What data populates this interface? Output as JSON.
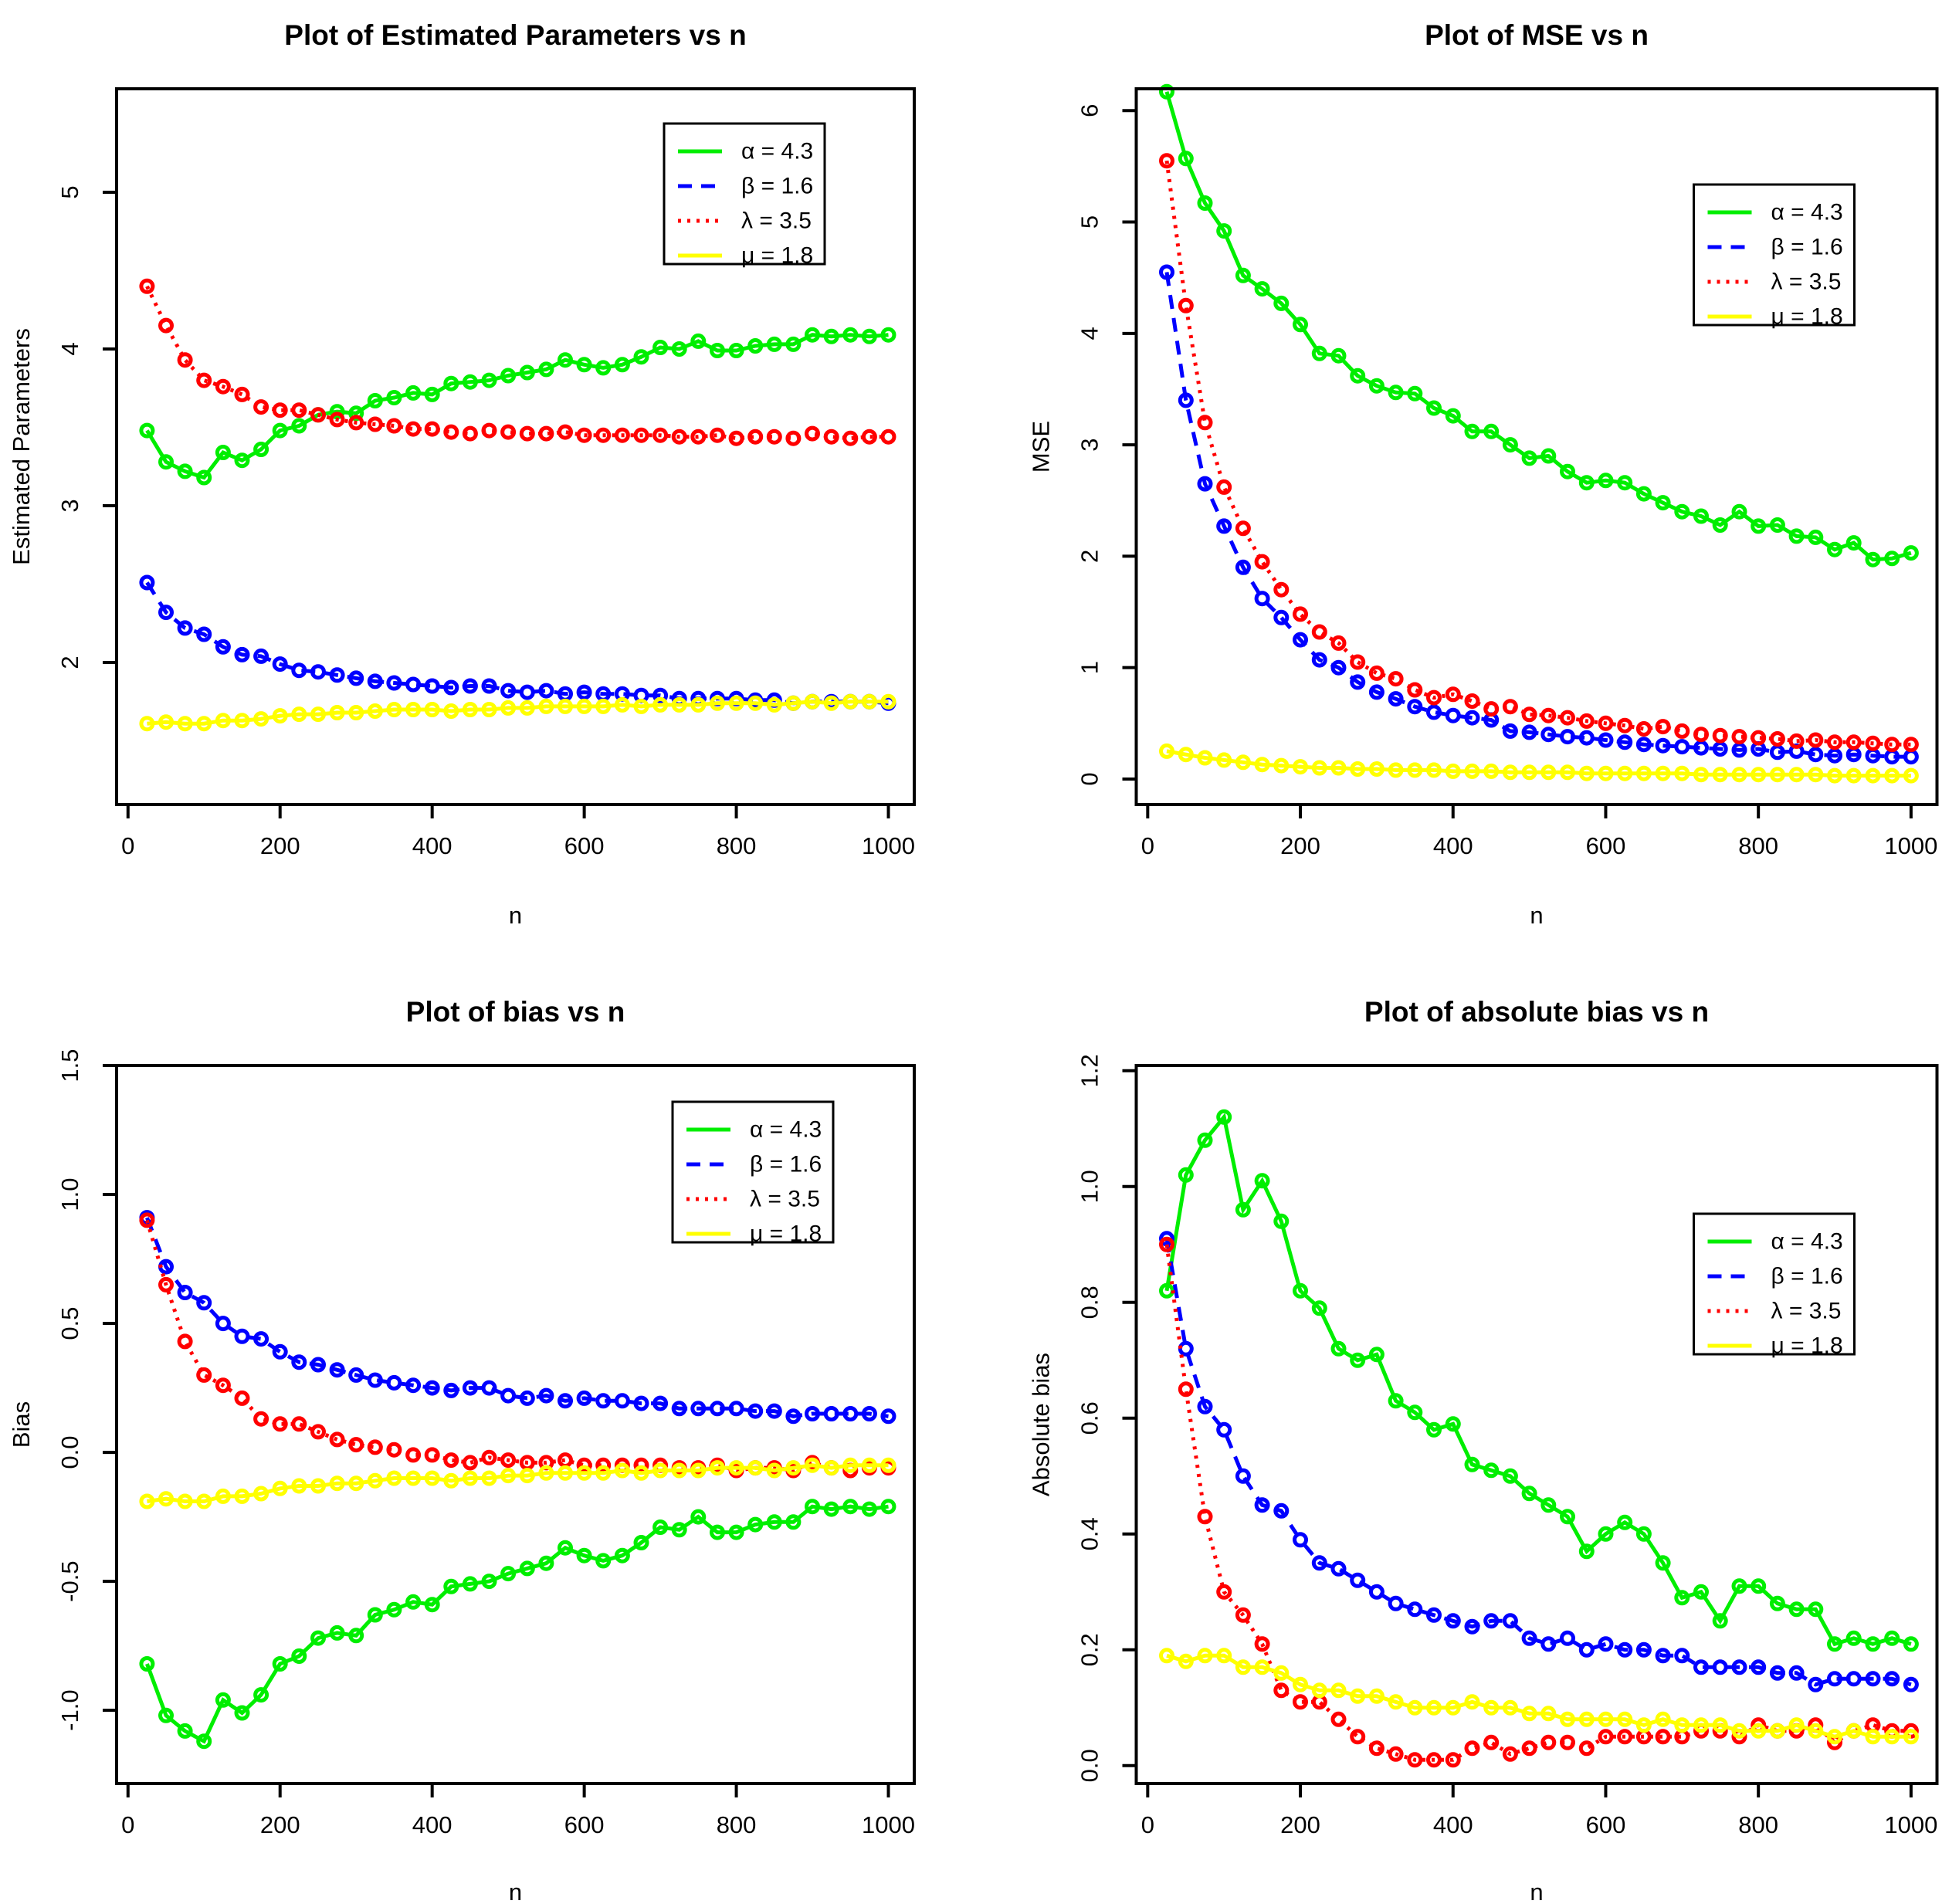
{
  "figure": {
    "background": "#ffffff",
    "axis_color": "#000000"
  },
  "n": [
    25,
    50,
    75,
    100,
    125,
    150,
    175,
    200,
    225,
    250,
    275,
    300,
    325,
    350,
    375,
    400,
    425,
    450,
    475,
    500,
    525,
    550,
    575,
    600,
    625,
    650,
    675,
    700,
    725,
    750,
    775,
    800,
    825,
    850,
    875,
    900,
    925,
    950,
    975,
    1000
  ],
  "legend_labels": [
    "α = 4.3",
    "β = 1.6",
    "λ = 3.5",
    "μ = 1.8"
  ],
  "chart_data": [
    {
      "type": "line",
      "title": "Plot of Estimated Parameters vs n",
      "xlabel": "n",
      "ylabel": "Estimated Parameters",
      "xlim": [
        -15,
        1034
      ],
      "ylim": [
        1.094,
        5.66
      ],
      "xticks": [
        0,
        200,
        400,
        600,
        800,
        1000
      ],
      "xtick_labels": [
        "0",
        "200",
        "400",
        "600",
        "800",
        "1000"
      ],
      "yticks": [
        2,
        3,
        4,
        5
      ],
      "ytick_labels": [
        "2",
        "3",
        "4",
        "5"
      ],
      "grid": false,
      "legend_position": "top-right",
      "series": [
        {
          "name": "alpha",
          "label": "α = 4.3",
          "color": "#00ee00",
          "dash": "solid",
          "marker": "open-circle",
          "values": [
            3.48,
            3.28,
            3.22,
            3.18,
            3.34,
            3.29,
            3.36,
            3.48,
            3.51,
            3.58,
            3.6,
            3.59,
            3.67,
            3.69,
            3.72,
            3.71,
            3.78,
            3.79,
            3.8,
            3.83,
            3.85,
            3.87,
            3.93,
            3.9,
            3.88,
            3.9,
            3.95,
            4.01,
            4.0,
            4.05,
            3.99,
            3.99,
            4.02,
            4.03,
            4.03,
            4.09,
            4.08,
            4.09,
            4.08,
            4.09
          ]
        },
        {
          "name": "beta",
          "label": "β = 1.6",
          "color": "#0000ff",
          "dash": "dashed",
          "marker": "open-circle",
          "values": [
            2.51,
            2.32,
            2.22,
            2.18,
            2.1,
            2.05,
            2.04,
            1.99,
            1.95,
            1.94,
            1.92,
            1.9,
            1.88,
            1.87,
            1.86,
            1.85,
            1.84,
            1.85,
            1.85,
            1.82,
            1.81,
            1.82,
            1.8,
            1.81,
            1.8,
            1.8,
            1.79,
            1.79,
            1.77,
            1.77,
            1.77,
            1.77,
            1.76,
            1.76,
            1.74,
            1.75,
            1.75,
            1.75,
            1.75,
            1.74
          ]
        },
        {
          "name": "lambda",
          "label": "λ = 3.5",
          "color": "#ff0000",
          "dash": "dotted",
          "marker": "open-circle",
          "values": [
            4.4,
            4.15,
            3.93,
            3.8,
            3.76,
            3.71,
            3.63,
            3.61,
            3.61,
            3.58,
            3.55,
            3.53,
            3.52,
            3.51,
            3.49,
            3.49,
            3.47,
            3.46,
            3.48,
            3.47,
            3.46,
            3.46,
            3.47,
            3.45,
            3.45,
            3.45,
            3.45,
            3.45,
            3.44,
            3.44,
            3.45,
            3.43,
            3.44,
            3.44,
            3.43,
            3.46,
            3.44,
            3.43,
            3.44,
            3.44
          ]
        },
        {
          "name": "mu",
          "label": "μ = 1.8",
          "color": "#ffff00",
          "dash": "solid",
          "marker": "open-circle",
          "values": [
            1.61,
            1.62,
            1.61,
            1.61,
            1.63,
            1.63,
            1.64,
            1.66,
            1.67,
            1.67,
            1.68,
            1.68,
            1.69,
            1.7,
            1.7,
            1.7,
            1.69,
            1.7,
            1.7,
            1.71,
            1.71,
            1.72,
            1.72,
            1.72,
            1.72,
            1.73,
            1.72,
            1.73,
            1.73,
            1.73,
            1.74,
            1.74,
            1.74,
            1.73,
            1.74,
            1.75,
            1.74,
            1.75,
            1.75,
            1.75
          ]
        }
      ]
    },
    {
      "type": "line",
      "title": "Plot of MSE vs n",
      "xlabel": "n",
      "ylabel": "MSE",
      "xlim": [
        -15,
        1034
      ],
      "ylim": [
        -0.229,
        6.196
      ],
      "xticks": [
        0,
        200,
        400,
        600,
        800,
        1000
      ],
      "xtick_labels": [
        "0",
        "200",
        "400",
        "600",
        "800",
        "1000"
      ],
      "yticks": [
        0,
        1,
        2,
        3,
        4,
        5,
        6
      ],
      "ytick_labels": [
        "0",
        "1",
        "2",
        "3",
        "4",
        "5",
        "6"
      ],
      "grid": false,
      "legend_position": "top-right",
      "series": [
        {
          "name": "alpha",
          "label": "α = 4.3",
          "color": "#00ee00",
          "dash": "solid",
          "marker": "open-circle",
          "values": [
            6.17,
            5.57,
            5.17,
            4.92,
            4.52,
            4.4,
            4.27,
            4.08,
            3.82,
            3.8,
            3.62,
            3.53,
            3.47,
            3.46,
            3.33,
            3.26,
            3.12,
            3.12,
            3.0,
            2.88,
            2.9,
            2.76,
            2.66,
            2.68,
            2.66,
            2.56,
            2.48,
            2.4,
            2.36,
            2.28,
            2.4,
            2.27,
            2.28,
            2.18,
            2.17,
            2.06,
            2.12,
            1.97,
            1.98,
            2.03
          ]
        },
        {
          "name": "beta",
          "label": "β = 1.6",
          "color": "#0000ff",
          "dash": "dashed",
          "marker": "open-circle",
          "values": [
            4.55,
            3.4,
            2.65,
            2.27,
            1.9,
            1.62,
            1.45,
            1.25,
            1.07,
            1.0,
            0.87,
            0.78,
            0.72,
            0.65,
            0.6,
            0.57,
            0.55,
            0.53,
            0.43,
            0.42,
            0.4,
            0.38,
            0.37,
            0.35,
            0.33,
            0.31,
            0.3,
            0.29,
            0.28,
            0.27,
            0.26,
            0.27,
            0.24,
            0.25,
            0.22,
            0.21,
            0.22,
            0.21,
            0.2,
            0.2
          ]
        },
        {
          "name": "lambda",
          "label": "λ = 3.5",
          "color": "#ff0000",
          "dash": "dotted",
          "marker": "open-circle",
          "values": [
            5.55,
            4.25,
            3.2,
            2.62,
            2.25,
            1.95,
            1.7,
            1.48,
            1.32,
            1.22,
            1.05,
            0.95,
            0.9,
            0.8,
            0.73,
            0.76,
            0.7,
            0.63,
            0.65,
            0.58,
            0.57,
            0.55,
            0.52,
            0.5,
            0.48,
            0.45,
            0.47,
            0.43,
            0.4,
            0.39,
            0.38,
            0.37,
            0.36,
            0.34,
            0.35,
            0.33,
            0.33,
            0.32,
            0.31,
            0.31
          ]
        },
        {
          "name": "mu",
          "label": "μ = 1.8",
          "color": "#ffff00",
          "dash": "solid",
          "marker": "open-circle",
          "values": [
            0.25,
            0.22,
            0.19,
            0.17,
            0.15,
            0.13,
            0.12,
            0.11,
            0.1,
            0.1,
            0.09,
            0.09,
            0.08,
            0.08,
            0.08,
            0.07,
            0.07,
            0.07,
            0.06,
            0.06,
            0.06,
            0.06,
            0.05,
            0.05,
            0.05,
            0.05,
            0.05,
            0.05,
            0.04,
            0.04,
            0.04,
            0.04,
            0.04,
            0.04,
            0.04,
            0.03,
            0.03,
            0.03,
            0.03,
            0.03
          ]
        }
      ]
    },
    {
      "type": "line",
      "title": "Plot of bias vs n",
      "xlabel": "n",
      "ylabel": "Bias",
      "xlim": [
        -15,
        1034
      ],
      "ylim": [
        -1.284,
        1.5
      ],
      "xticks": [
        0,
        200,
        400,
        600,
        800,
        1000
      ],
      "xtick_labels": [
        "0",
        "200",
        "400",
        "600",
        "800",
        "1000"
      ],
      "yticks": [
        -1.0,
        -0.5,
        0.0,
        0.5,
        1.0,
        1.5
      ],
      "ytick_labels": [
        "-1.0",
        "-0.5",
        "0.0",
        "0.5",
        "1.0",
        "1.5"
      ],
      "grid": false,
      "legend_position": "top-right",
      "series": [
        {
          "name": "alpha",
          "label": "α = 4.3",
          "color": "#00ee00",
          "dash": "solid",
          "marker": "open-circle",
          "values": [
            -0.82,
            -1.02,
            -1.08,
            -1.12,
            -0.96,
            -1.01,
            -0.94,
            -0.82,
            -0.79,
            -0.72,
            -0.7,
            -0.71,
            -0.63,
            -0.61,
            -0.58,
            -0.59,
            -0.52,
            -0.51,
            -0.5,
            -0.47,
            -0.45,
            -0.43,
            -0.37,
            -0.4,
            -0.42,
            -0.4,
            -0.35,
            -0.29,
            -0.3,
            -0.25,
            -0.31,
            -0.31,
            -0.28,
            -0.27,
            -0.27,
            -0.21,
            -0.22,
            -0.21,
            -0.22,
            -0.21
          ]
        },
        {
          "name": "beta",
          "label": "β = 1.6",
          "color": "#0000ff",
          "dash": "dashed",
          "marker": "open-circle",
          "values": [
            0.91,
            0.72,
            0.62,
            0.58,
            0.5,
            0.45,
            0.44,
            0.39,
            0.35,
            0.34,
            0.32,
            0.3,
            0.28,
            0.27,
            0.26,
            0.25,
            0.24,
            0.25,
            0.25,
            0.22,
            0.21,
            0.22,
            0.2,
            0.21,
            0.2,
            0.2,
            0.19,
            0.19,
            0.17,
            0.17,
            0.17,
            0.17,
            0.16,
            0.16,
            0.14,
            0.15,
            0.15,
            0.15,
            0.15,
            0.14
          ]
        },
        {
          "name": "lambda",
          "label": "λ = 3.5",
          "color": "#ff0000",
          "dash": "dotted",
          "marker": "open-circle",
          "values": [
            0.9,
            0.65,
            0.43,
            0.3,
            0.26,
            0.21,
            0.13,
            0.11,
            0.11,
            0.08,
            0.05,
            0.03,
            0.02,
            0.01,
            -0.01,
            -0.01,
            -0.03,
            -0.04,
            -0.02,
            -0.03,
            -0.04,
            -0.04,
            -0.03,
            -0.05,
            -0.05,
            -0.05,
            -0.05,
            -0.05,
            -0.06,
            -0.06,
            -0.05,
            -0.07,
            -0.06,
            -0.06,
            -0.07,
            -0.04,
            -0.06,
            -0.07,
            -0.06,
            -0.06
          ]
        },
        {
          "name": "mu",
          "label": "μ = 1.8",
          "color": "#ffff00",
          "dash": "solid",
          "marker": "open-circle",
          "values": [
            -0.19,
            -0.18,
            -0.19,
            -0.19,
            -0.17,
            -0.17,
            -0.16,
            -0.14,
            -0.13,
            -0.13,
            -0.12,
            -0.12,
            -0.11,
            -0.1,
            -0.1,
            -0.1,
            -0.11,
            -0.1,
            -0.1,
            -0.09,
            -0.09,
            -0.08,
            -0.08,
            -0.08,
            -0.08,
            -0.07,
            -0.08,
            -0.07,
            -0.07,
            -0.07,
            -0.06,
            -0.06,
            -0.06,
            -0.07,
            -0.06,
            -0.05,
            -0.06,
            -0.05,
            -0.05,
            -0.05
          ]
        }
      ]
    },
    {
      "type": "line",
      "title": "Plot of absolute bias vs n",
      "xlabel": "n",
      "ylabel": "Absolute bias",
      "xlim": [
        -15,
        1034
      ],
      "ylim": [
        -0.031,
        1.209
      ],
      "xticks": [
        0,
        200,
        400,
        600,
        800,
        1000
      ],
      "xtick_labels": [
        "0",
        "200",
        "400",
        "600",
        "800",
        "1000"
      ],
      "yticks": [
        0.0,
        0.2,
        0.4,
        0.6,
        0.8,
        1.0,
        1.2
      ],
      "ytick_labels": [
        "0.0",
        "0.2",
        "0.4",
        "0.6",
        "0.8",
        "1.0",
        "1.2"
      ],
      "grid": false,
      "legend_position": "top-right",
      "series": [
        {
          "name": "alpha",
          "label": "α = 4.3",
          "color": "#00ee00",
          "dash": "solid",
          "marker": "open-circle",
          "values": [
            0.82,
            1.02,
            1.08,
            1.12,
            0.96,
            1.01,
            0.94,
            0.82,
            0.79,
            0.72,
            0.7,
            0.71,
            0.63,
            0.61,
            0.58,
            0.59,
            0.52,
            0.51,
            0.5,
            0.47,
            0.45,
            0.43,
            0.37,
            0.4,
            0.42,
            0.4,
            0.35,
            0.29,
            0.3,
            0.25,
            0.31,
            0.31,
            0.28,
            0.27,
            0.27,
            0.21,
            0.22,
            0.21,
            0.22,
            0.21
          ]
        },
        {
          "name": "beta",
          "label": "β = 1.6",
          "color": "#0000ff",
          "dash": "dashed",
          "marker": "open-circle",
          "values": [
            0.91,
            0.72,
            0.62,
            0.58,
            0.5,
            0.45,
            0.44,
            0.39,
            0.35,
            0.34,
            0.32,
            0.3,
            0.28,
            0.27,
            0.26,
            0.25,
            0.24,
            0.25,
            0.25,
            0.22,
            0.21,
            0.22,
            0.2,
            0.21,
            0.2,
            0.2,
            0.19,
            0.19,
            0.17,
            0.17,
            0.17,
            0.17,
            0.16,
            0.16,
            0.14,
            0.15,
            0.15,
            0.15,
            0.15,
            0.14
          ]
        },
        {
          "name": "lambda",
          "label": "λ = 3.5",
          "color": "#ff0000",
          "dash": "dotted",
          "marker": "open-circle",
          "values": [
            0.9,
            0.65,
            0.43,
            0.3,
            0.26,
            0.21,
            0.13,
            0.11,
            0.11,
            0.08,
            0.05,
            0.03,
            0.02,
            0.01,
            0.01,
            0.01,
            0.03,
            0.04,
            0.02,
            0.03,
            0.04,
            0.04,
            0.03,
            0.05,
            0.05,
            0.05,
            0.05,
            0.05,
            0.06,
            0.06,
            0.05,
            0.07,
            0.06,
            0.06,
            0.07,
            0.04,
            0.06,
            0.07,
            0.06,
            0.06
          ]
        },
        {
          "name": "mu",
          "label": "μ = 1.8",
          "color": "#ffff00",
          "dash": "solid",
          "marker": "open-circle",
          "values": [
            0.19,
            0.18,
            0.19,
            0.19,
            0.17,
            0.17,
            0.16,
            0.14,
            0.13,
            0.13,
            0.12,
            0.12,
            0.11,
            0.1,
            0.1,
            0.1,
            0.11,
            0.1,
            0.1,
            0.09,
            0.09,
            0.08,
            0.08,
            0.08,
            0.08,
            0.07,
            0.08,
            0.07,
            0.07,
            0.07,
            0.06,
            0.06,
            0.06,
            0.07,
            0.06,
            0.05,
            0.06,
            0.05,
            0.05,
            0.05
          ]
        }
      ]
    }
  ]
}
